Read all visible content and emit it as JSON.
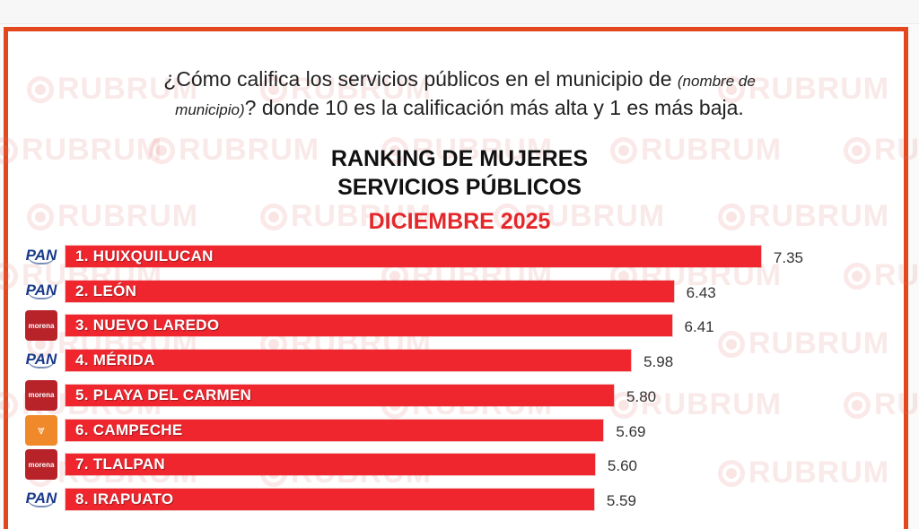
{
  "header": {
    "question_main": "¿Cómo califica los servicios públicos en el municipio de",
    "question_italic_1": "(nombre de",
    "question_italic_2": "municipio)",
    "question_rest": "? donde 10 es la calificación más alta y 1 es más baja."
  },
  "watermark": "RUBRUM",
  "colors": {
    "frame": "#e2471d",
    "bar": "#f0262e",
    "accent_title": "#e3272b",
    "pan": "#1a3a8a",
    "morena": "#b8232a",
    "mc": "#f0892a"
  },
  "chart_data": {
    "type": "bar",
    "orientation": "horizontal",
    "title": "RANKING DE MUJERES",
    "subtitle": "SERVICIOS PÚBLICOS",
    "period": "DICIEMBRE 2025",
    "xlabel": "",
    "ylabel": "",
    "xlim": [
      0,
      10
    ],
    "grid": false,
    "categories": [
      "1. HUIXQUILUCAN",
      "2. LEÓN",
      "3. NUEVO LAREDO",
      "4. MÉRIDA",
      "5. PLAYA DEL CARMEN",
      "6. CAMPECHE",
      "7. TLALPAN",
      "8. IRAPUATO"
    ],
    "values": [
      7.35,
      6.43,
      6.41,
      5.98,
      5.8,
      5.69,
      5.6,
      5.59
    ],
    "value_labels": [
      "7.35",
      "6.43",
      "6.41",
      "5.98",
      "5.80",
      "5.69",
      "5.60",
      "5.59"
    ],
    "party_logos": [
      "PAN",
      "PAN",
      "morena",
      "PAN",
      "morena",
      "MC",
      "morena",
      "PAN"
    ]
  }
}
